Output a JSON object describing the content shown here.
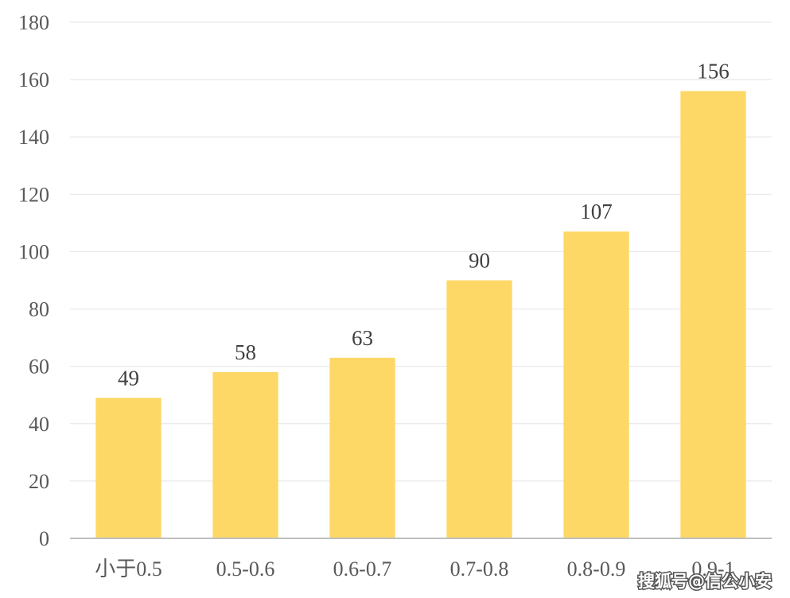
{
  "chart_data": {
    "type": "bar",
    "categories": [
      "小于0.5",
      "0.5-0.6",
      "0.6-0.7",
      "0.7-0.8",
      "0.8-0.9",
      "0.9-1"
    ],
    "values": [
      49,
      58,
      63,
      90,
      107,
      156
    ],
    "value_labels": [
      "49",
      "58",
      "63",
      "90",
      "107",
      "156"
    ],
    "ylim": [
      0,
      180
    ],
    "yticks": [
      "0",
      "20",
      "40",
      "60",
      "80",
      "100",
      "120",
      "140",
      "160",
      "180"
    ],
    "grid": true,
    "bar_color": "#FDD866",
    "grid_color": "#E8E8E8",
    "axis_color": "#BFBFBF"
  },
  "watermark": "搜狐号@信公小安"
}
